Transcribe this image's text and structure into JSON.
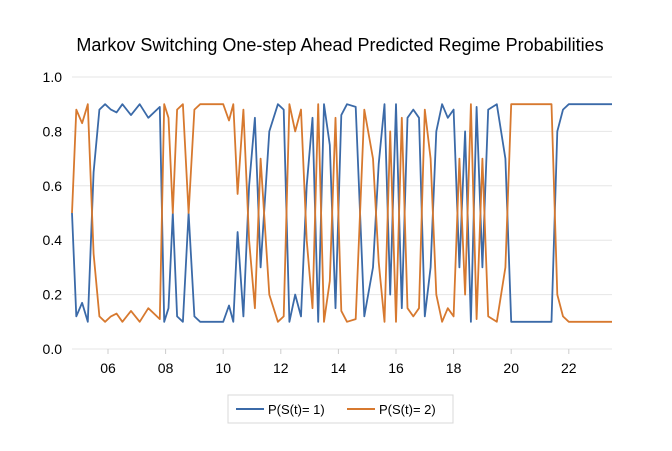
{
  "chart_data": {
    "type": "line",
    "title": "Markov Switching One-step Ahead Predicted Regime Probabilities",
    "xlabel": "",
    "ylabel": "",
    "xlim": [
      2004.75,
      2023.5
    ],
    "ylim": [
      0,
      1
    ],
    "x_ticks": [
      2006,
      2008,
      2010,
      2012,
      2014,
      2016,
      2018,
      2020,
      2022
    ],
    "x_tick_labels": [
      "06",
      "08",
      "10",
      "12",
      "14",
      "16",
      "18",
      "20",
      "22"
    ],
    "y_ticks": [
      0,
      0.2,
      0.4,
      0.6,
      0.8,
      1.0
    ],
    "y_tick_labels": [
      "0.0",
      "0.2",
      "0.4",
      "0.6",
      "0.8",
      "1.0"
    ],
    "grid": true,
    "legend_position": "bottom",
    "series": [
      {
        "name": "P(S(t)= 1)",
        "color": "#3b6aa8",
        "x": [
          2004.75,
          2004.9,
          2005.1,
          2005.3,
          2005.5,
          2005.7,
          2005.9,
          2006.1,
          2006.3,
          2006.5,
          2006.8,
          2007.1,
          2007.4,
          2007.8,
          2007.95,
          2008.1,
          2008.25,
          2008.4,
          2008.6,
          2008.8,
          2009.0,
          2009.2,
          2009.6,
          2010.0,
          2010.2,
          2010.35,
          2010.5,
          2010.7,
          2010.9,
          2011.1,
          2011.3,
          2011.6,
          2011.9,
          2012.1,
          2012.3,
          2012.5,
          2012.7,
          2012.9,
          2013.1,
          2013.3,
          2013.5,
          2013.7,
          2013.9,
          2014.1,
          2014.3,
          2014.6,
          2014.9,
          2015.2,
          2015.4,
          2015.6,
          2015.8,
          2016.0,
          2016.2,
          2016.4,
          2016.6,
          2016.8,
          2017.0,
          2017.2,
          2017.4,
          2017.6,
          2017.8,
          2018.0,
          2018.2,
          2018.4,
          2018.6,
          2018.8,
          2019.0,
          2019.2,
          2019.5,
          2019.8,
          2020.0,
          2020.15,
          2020.4,
          2020.8,
          2021.2,
          2021.4,
          2021.6,
          2021.8,
          2022.0,
          2022.3,
          2022.7,
          2023.1,
          2023.5
        ],
        "values": [
          0.5,
          0.12,
          0.17,
          0.1,
          0.65,
          0.88,
          0.9,
          0.88,
          0.87,
          0.9,
          0.86,
          0.9,
          0.85,
          0.89,
          0.1,
          0.15,
          0.5,
          0.12,
          0.1,
          0.5,
          0.12,
          0.1,
          0.1,
          0.1,
          0.16,
          0.1,
          0.43,
          0.12,
          0.6,
          0.85,
          0.3,
          0.8,
          0.9,
          0.88,
          0.1,
          0.2,
          0.12,
          0.6,
          0.85,
          0.1,
          0.9,
          0.75,
          0.15,
          0.86,
          0.9,
          0.89,
          0.12,
          0.3,
          0.68,
          0.9,
          0.2,
          0.9,
          0.15,
          0.85,
          0.88,
          0.85,
          0.12,
          0.3,
          0.8,
          0.9,
          0.85,
          0.88,
          0.3,
          0.8,
          0.1,
          0.89,
          0.3,
          0.88,
          0.9,
          0.7,
          0.1,
          0.1,
          0.1,
          0.1,
          0.1,
          0.1,
          0.8,
          0.88,
          0.9,
          0.9,
          0.9,
          0.9,
          0.9
        ]
      },
      {
        "name": "P(S(t)= 2)",
        "color": "#d7792f",
        "x": [
          2004.75,
          2004.9,
          2005.1,
          2005.3,
          2005.5,
          2005.7,
          2005.9,
          2006.1,
          2006.3,
          2006.5,
          2006.8,
          2007.1,
          2007.4,
          2007.8,
          2007.95,
          2008.1,
          2008.25,
          2008.4,
          2008.6,
          2008.8,
          2009.0,
          2009.2,
          2009.6,
          2010.0,
          2010.2,
          2010.35,
          2010.5,
          2010.7,
          2010.9,
          2011.1,
          2011.3,
          2011.6,
          2011.9,
          2012.1,
          2012.3,
          2012.5,
          2012.7,
          2012.9,
          2013.1,
          2013.3,
          2013.5,
          2013.7,
          2013.9,
          2014.1,
          2014.3,
          2014.6,
          2014.9,
          2015.2,
          2015.4,
          2015.6,
          2015.8,
          2016.0,
          2016.2,
          2016.4,
          2016.6,
          2016.8,
          2017.0,
          2017.2,
          2017.4,
          2017.6,
          2017.8,
          2018.0,
          2018.2,
          2018.4,
          2018.6,
          2018.8,
          2019.0,
          2019.2,
          2019.5,
          2019.8,
          2020.0,
          2020.15,
          2020.4,
          2020.8,
          2021.2,
          2021.4,
          2021.6,
          2021.8,
          2022.0,
          2022.3,
          2022.7,
          2023.1,
          2023.5
        ],
        "values": [
          0.5,
          0.88,
          0.83,
          0.9,
          0.35,
          0.12,
          0.1,
          0.12,
          0.13,
          0.1,
          0.14,
          0.1,
          0.15,
          0.11,
          0.9,
          0.85,
          0.5,
          0.88,
          0.9,
          0.5,
          0.88,
          0.9,
          0.9,
          0.9,
          0.84,
          0.9,
          0.57,
          0.88,
          0.4,
          0.15,
          0.7,
          0.2,
          0.1,
          0.12,
          0.9,
          0.8,
          0.88,
          0.4,
          0.15,
          0.9,
          0.1,
          0.25,
          0.85,
          0.14,
          0.1,
          0.11,
          0.88,
          0.7,
          0.32,
          0.1,
          0.8,
          0.1,
          0.85,
          0.15,
          0.12,
          0.15,
          0.88,
          0.7,
          0.2,
          0.1,
          0.15,
          0.12,
          0.7,
          0.2,
          0.9,
          0.11,
          0.7,
          0.12,
          0.1,
          0.3,
          0.9,
          0.9,
          0.9,
          0.9,
          0.9,
          0.9,
          0.2,
          0.12,
          0.1,
          0.1,
          0.1,
          0.1,
          0.1
        ]
      }
    ]
  }
}
